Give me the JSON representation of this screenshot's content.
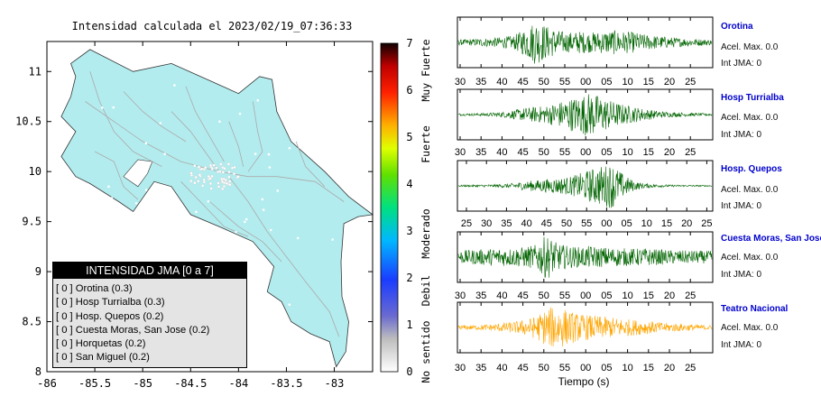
{
  "map": {
    "title": "Intensidad calculada el 2023/02/19_07:36:33",
    "x_ticks": [
      "-86",
      "-85.5",
      "-85",
      "-84.5",
      "-84",
      "-83.5",
      "-83"
    ],
    "y_ticks": [
      "11",
      "10.5",
      "10",
      "9.5",
      "9",
      "8.5",
      "8"
    ],
    "land_color": "#b3ecee",
    "sea_color": "#ffffff",
    "road_color": "#aaaaaa"
  },
  "colorbar": {
    "ticks": [
      "7",
      "6",
      "5",
      "4",
      "3",
      "2",
      "1",
      "0"
    ],
    "labels": [
      "Muy Fuerte",
      "Fuerte",
      "Moderado",
      "Debil",
      "No sentido"
    ]
  },
  "legend": {
    "header": "INTENSIDAD JMA [0 a 7]",
    "items": [
      "[ 0 ]  Orotina (0.3)",
      "[ 0 ]  Hosp Turrialba (0.3)",
      "[ 0 ]  Hosp. Quepos (0.2)",
      "[ 0 ]  Cuesta Moras, San Jose (0.2)",
      "[ 0 ]  Horquetas (0.2)",
      "[ 0 ]  San Miguel (0.2)"
    ]
  },
  "stations": [
    {
      "name": "Orotina",
      "acel": "Acel. Max. 0.0",
      "int": "Int JMA: 0",
      "color": "#006400",
      "ticks": [
        "30",
        "35",
        "40",
        "45",
        "50",
        "55",
        "00",
        "05",
        "10",
        "15",
        "20",
        "25"
      ]
    },
    {
      "name": "Hosp Turrialba",
      "acel": "Acel. Max. 0.0",
      "int": "Int JMA: 0",
      "color": "#006400",
      "ticks": [
        "30",
        "35",
        "40",
        "45",
        "50",
        "55",
        "00",
        "05",
        "10",
        "15",
        "20",
        "25"
      ]
    },
    {
      "name": "Hosp. Quepos",
      "acel": "Acel. Max. 0.0",
      "int": "Int JMA: 0",
      "color": "#006400",
      "ticks": [
        "25",
        "30",
        "35",
        "40",
        "45",
        "50",
        "55",
        "00",
        "05",
        "10",
        "15",
        "20",
        "25"
      ]
    },
    {
      "name": "Cuesta Moras, San Jose",
      "acel": "Acel. Max. 0.0",
      "int": "Int JMA: 0",
      "color": "#006400",
      "ticks": [
        "30",
        "35",
        "40",
        "45",
        "50",
        "55",
        "00",
        "05",
        "10",
        "15",
        "20",
        "25"
      ]
    },
    {
      "name": "Teatro Nacional",
      "acel": "Acel. Max. 0.0",
      "int": "Int JMA: 0",
      "color": "#ffa500",
      "ticks": [
        "30",
        "35",
        "40",
        "45",
        "50",
        "55",
        "00",
        "05",
        "10",
        "15",
        "20",
        "25"
      ]
    }
  ],
  "time_axis_label": "Tiempo (s)",
  "chart_data": [
    {
      "type": "heatmap",
      "title": "Intensidad calculada el 2023/02/19_07:36:33",
      "xlabel": "",
      "ylabel": "",
      "xlim": [
        -86,
        -82.6
      ],
      "ylim": [
        8,
        11.3
      ],
      "colorbar_range": [
        0,
        7
      ],
      "stations": [
        {
          "name": "Orotina",
          "intensity": 0.3
        },
        {
          "name": "Hosp Turrialba",
          "intensity": 0.3
        },
        {
          "name": "Hosp. Quepos",
          "intensity": 0.2
        },
        {
          "name": "Cuesta Moras, San Jose",
          "intensity": 0.2
        },
        {
          "name": "Horquetas",
          "intensity": 0.2
        },
        {
          "name": "San Miguel",
          "intensity": 0.2
        }
      ]
    },
    {
      "type": "line",
      "xlabel": "Tiempo (s)",
      "series": [
        {
          "name": "Orotina",
          "peak_time": "50",
          "envelope": [
            0.12,
            0.14,
            0.18,
            0.2,
            0.25,
            0.3,
            0.6,
            1.0,
            0.75,
            0.55,
            0.45,
            0.5,
            0.45,
            0.5,
            0.55,
            0.5,
            0.45,
            0.35,
            0.3,
            0.25,
            0.2,
            0.18,
            0.15,
            0.12
          ]
        },
        {
          "name": "Hosp Turrialba",
          "peak_time": "00",
          "envelope": [
            0.05,
            0.05,
            0.06,
            0.08,
            0.12,
            0.2,
            0.3,
            0.35,
            0.4,
            0.55,
            0.7,
            0.85,
            1.0,
            0.8,
            0.6,
            0.45,
            0.35,
            0.25,
            0.18,
            0.12,
            0.1,
            0.08,
            0.06,
            0.05
          ]
        },
        {
          "name": "Hosp. Quepos",
          "peak_time": "05",
          "envelope": [
            0.04,
            0.04,
            0.05,
            0.06,
            0.08,
            0.12,
            0.2,
            0.25,
            0.3,
            0.35,
            0.4,
            0.55,
            0.75,
            0.9,
            1.0,
            0.5,
            0.2,
            0.1,
            0.07,
            0.05,
            0.04,
            0.04,
            0.03,
            0.03
          ]
        },
        {
          "name": "Cuesta Moras, San Jose",
          "peak_time": "50",
          "envelope": [
            0.3,
            0.32,
            0.35,
            0.38,
            0.4,
            0.42,
            0.45,
            0.55,
            1.0,
            0.6,
            0.5,
            0.45,
            0.5,
            0.45,
            0.42,
            0.4,
            0.38,
            0.4,
            0.35,
            0.32,
            0.3,
            0.3,
            0.28,
            0.28
          ]
        },
        {
          "name": "Teatro Nacional",
          "peak_time": "55",
          "envelope": [
            0.1,
            0.1,
            0.12,
            0.15,
            0.2,
            0.25,
            0.35,
            0.5,
            0.85,
            1.0,
            0.75,
            0.6,
            0.55,
            0.5,
            0.45,
            0.4,
            0.35,
            0.3,
            0.25,
            0.2,
            0.18,
            0.15,
            0.12,
            0.1
          ]
        }
      ]
    }
  ]
}
